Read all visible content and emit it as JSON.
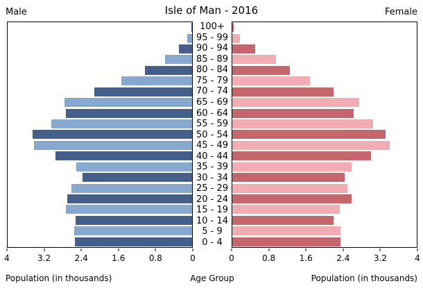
{
  "header": {
    "male_label": "Male",
    "title": "Isle of Man - 2016",
    "female_label": "Female"
  },
  "axis": {
    "left_xlabel": "Population (in thousands)",
    "center_xlabel": "Age Group",
    "right_xlabel": "Population (in thousands)"
  },
  "chart_data": {
    "type": "bar",
    "subtype": "population-pyramid",
    "title": "Isle of Man - 2016",
    "age_groups": [
      "100+",
      "95 - 99",
      "90 - 94",
      "85 - 89",
      "80 - 84",
      "75 - 79",
      "70 - 74",
      "65 - 69",
      "60 - 64",
      "55 - 59",
      "50 - 54",
      "45 - 49",
      "40 - 44",
      "35 - 39",
      "30 - 34",
      "25 - 29",
      "20 - 24",
      "15 - 19",
      "10 - 14",
      "5 - 9",
      "0 - 4"
    ],
    "series": [
      {
        "name": "Male",
        "side": "left",
        "values": [
          0.02,
          0.1,
          0.28,
          0.58,
          1.03,
          1.53,
          2.12,
          2.76,
          2.74,
          3.06,
          3.46,
          3.43,
          2.97,
          2.51,
          2.38,
          2.61,
          2.7,
          2.73,
          2.52,
          2.55,
          2.54
        ]
      },
      {
        "name": "Female",
        "side": "right",
        "values": [
          0.03,
          0.16,
          0.5,
          0.94,
          1.25,
          1.68,
          2.2,
          2.75,
          2.63,
          3.05,
          3.32,
          3.41,
          3.01,
          2.58,
          2.44,
          2.5,
          2.59,
          2.33,
          2.2,
          2.34,
          2.34
        ]
      }
    ],
    "xlim": [
      0,
      4
    ],
    "xticks_left": [
      4,
      3.2,
      2.4,
      1.6,
      0.8,
      0
    ],
    "xticks_right": [
      0,
      0.8,
      1.6,
      2.4,
      3.2,
      4
    ],
    "xlabel_left": "Population (in thousands)",
    "xlabel_center": "Age Group",
    "xlabel_right": "Population (in thousands)",
    "grid": false,
    "legend": false,
    "colors": {
      "male_dark": "#44608a",
      "male_light": "#87a9cf",
      "female_dark": "#c5656c",
      "female_light": "#f2adb3",
      "axis": "#000000",
      "background": "#ffffff"
    }
  }
}
